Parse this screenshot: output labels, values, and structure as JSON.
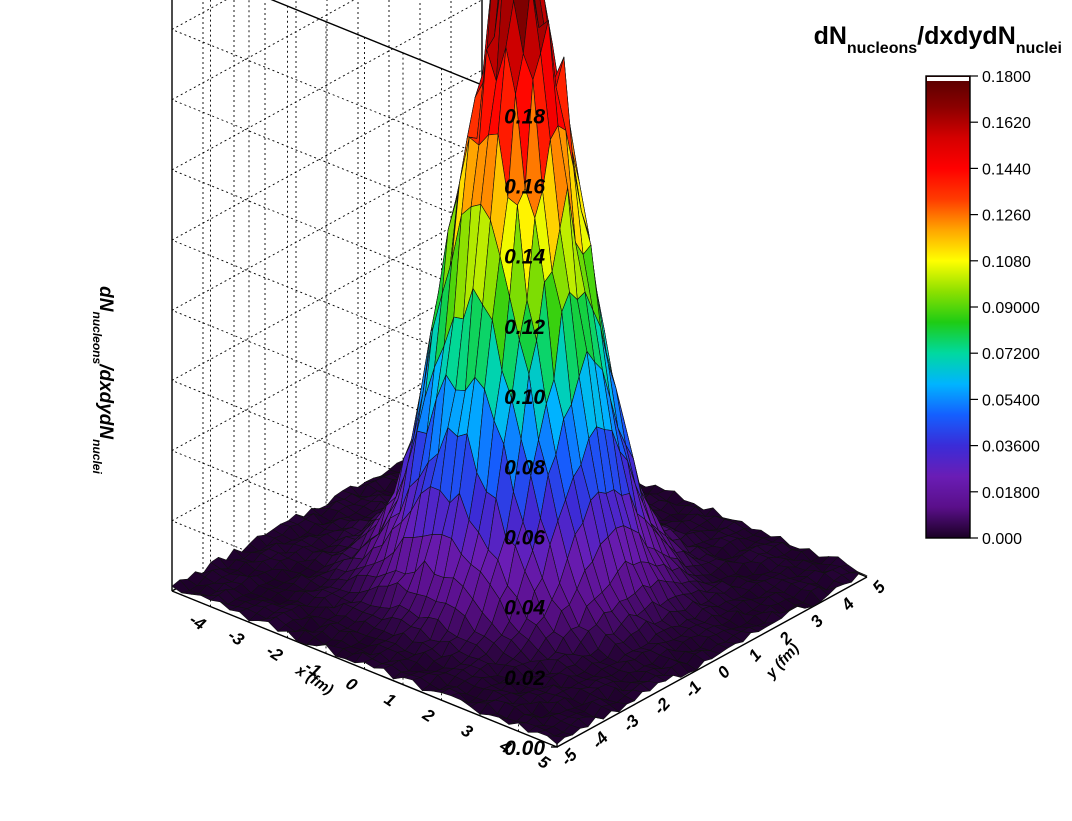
{
  "chart_data": {
    "type": "surface3d",
    "title": "dN",
    "title_sub1": "nucleons",
    "title_mid": "/dxdydN",
    "title_sub2": "nuclei",
    "zlabel": {
      "p1": "dN",
      "s1": "nucleons",
      "p2": "/dxdydN",
      "s2": "nuclei"
    },
    "xlabel": "x (fm)",
    "ylabel": "y (fm)",
    "xlim": [
      -5,
      5
    ],
    "ylim": [
      -5,
      5
    ],
    "zlim": [
      0,
      0.18
    ],
    "x_ticks": [
      "-4",
      "-3",
      "-2",
      "-1",
      "0",
      "1",
      "2",
      "3",
      "4",
      "5"
    ],
    "y_ticks": [
      "-5",
      "-4",
      "-3",
      "-2",
      "-1",
      "0",
      "1",
      "2",
      "3",
      "4",
      "5"
    ],
    "z_ticks": [
      "0.00",
      "0.02",
      "0.04",
      "0.06",
      "0.08",
      "0.10",
      "0.12",
      "0.14",
      "0.16",
      "0.18"
    ],
    "surface": {
      "shape": "gaussian",
      "peak": 0.18,
      "center": [
        0,
        0
      ],
      "sigma_fm": 1.25,
      "grid_step_fm": 0.25
    },
    "colorbar": {
      "ticks": [
        "0.1800",
        "0.1620",
        "0.1440",
        "0.1260",
        "0.1080",
        "0.09000",
        "0.07200",
        "0.05400",
        "0.03600",
        "0.01800",
        "0.000"
      ],
      "colormap": [
        "#1a0024",
        "#5a0f8a",
        "#6a1db5",
        "#3a2cd8",
        "#1460ff",
        "#00b4ff",
        "#00d9a0",
        "#1ecc14",
        "#8ce000",
        "#ffff00",
        "#ffa500",
        "#ff3c00",
        "#ff0000",
        "#d40000",
        "#8b0000",
        "#550000"
      ],
      "top_color": "#ffffff"
    }
  }
}
